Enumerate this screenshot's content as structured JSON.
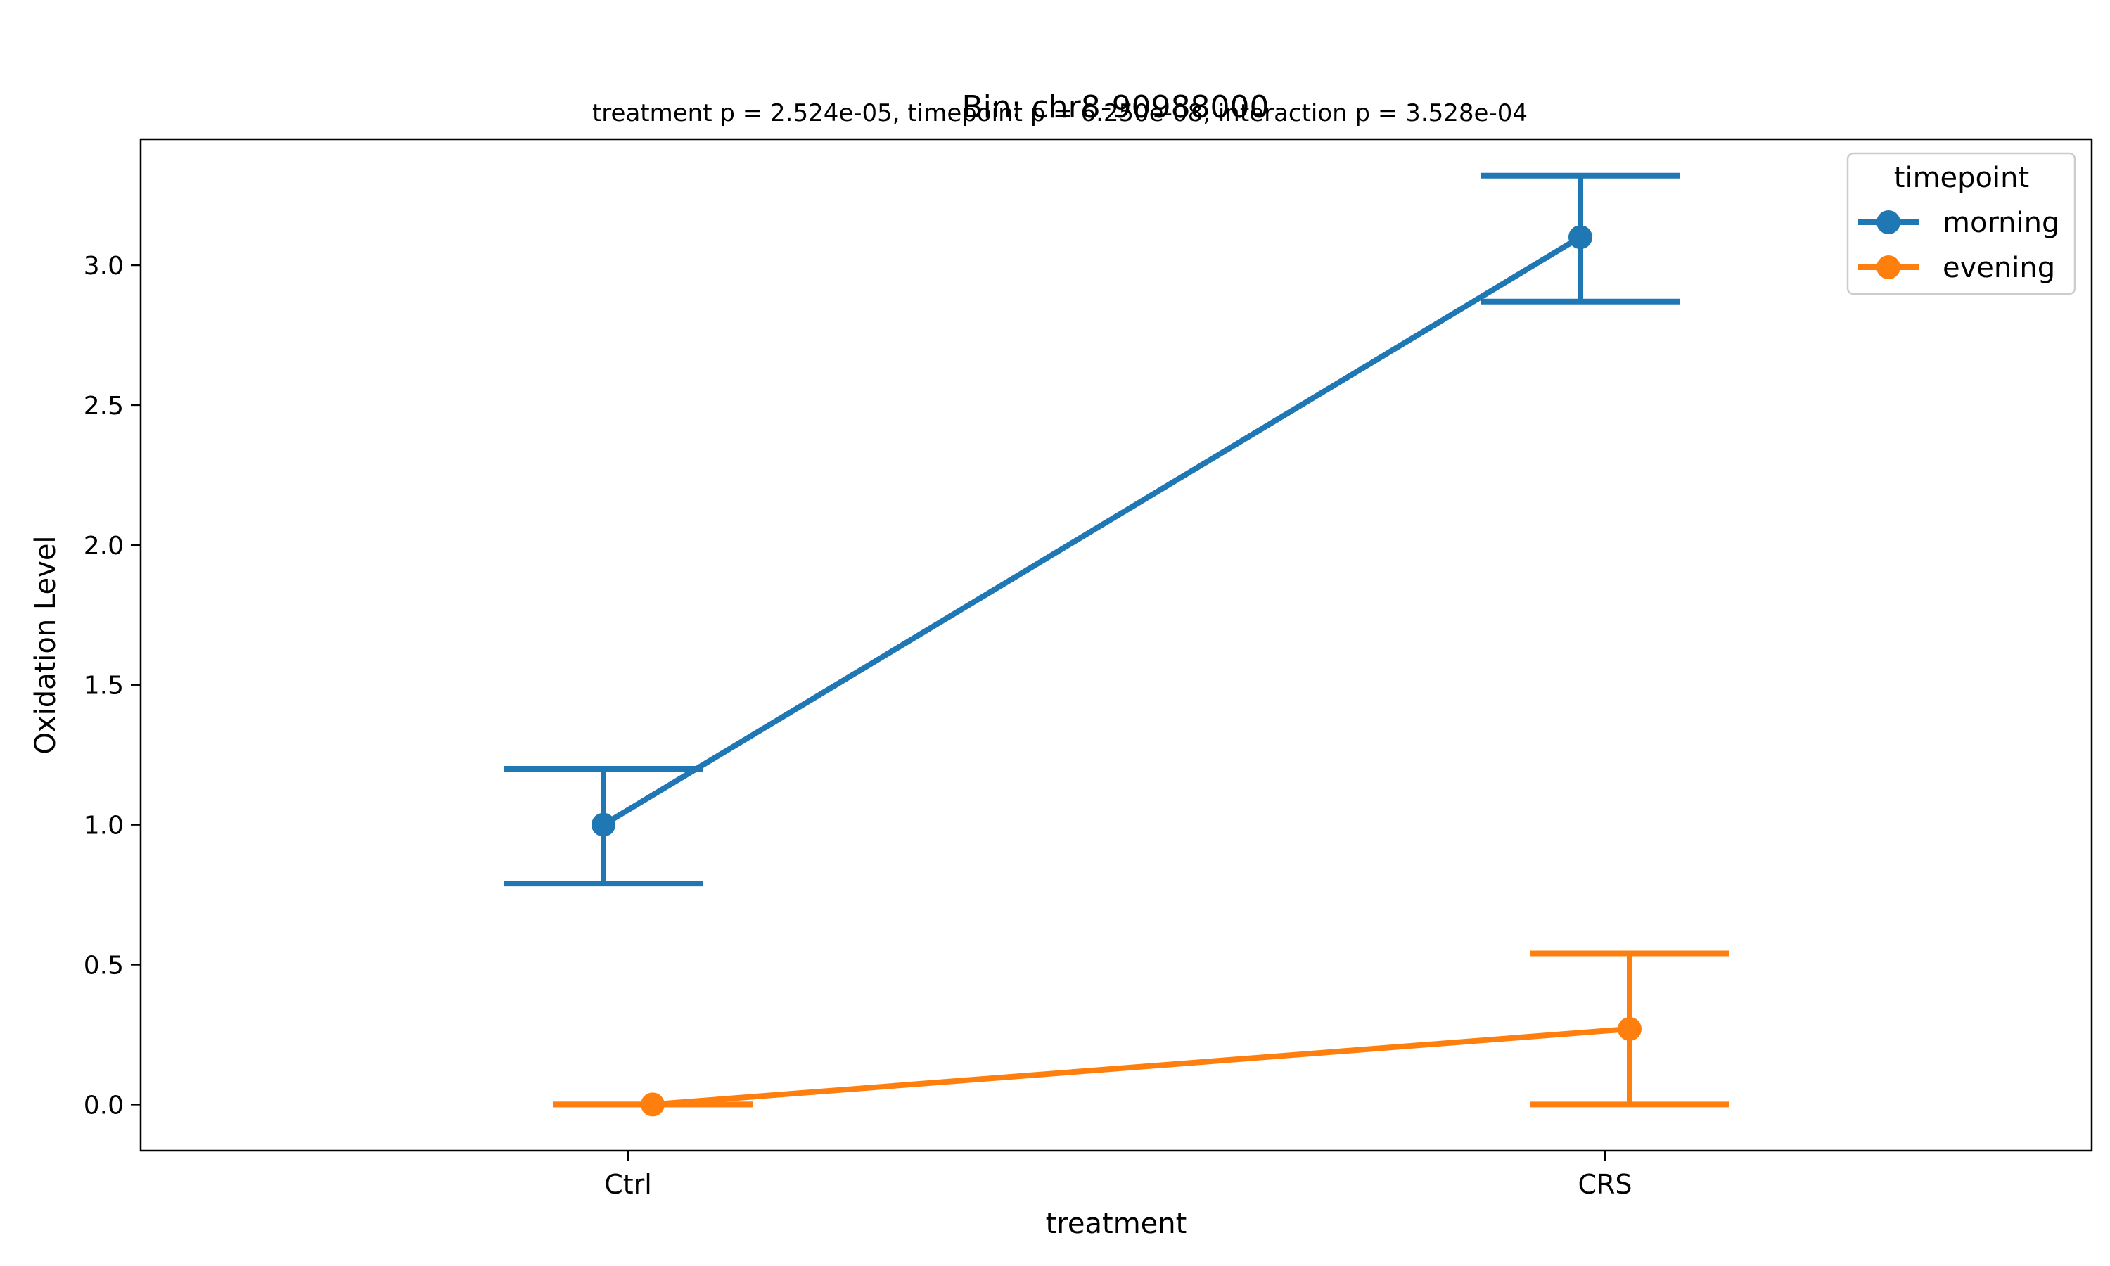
{
  "chart_data": {
    "type": "line",
    "title": "Bin: chr8-90988000",
    "subtitle": "treatment p = 2.524e-05, timepoint p = 6.250e-08, interaction p = 3.528e-04",
    "xlabel": "treatment",
    "ylabel": "Oxidation Level",
    "categories": [
      "Ctrl",
      "CRS"
    ],
    "ylim": [
      -0.165,
      3.45
    ],
    "yticks": [
      "0.0",
      "0.5",
      "1.0",
      "1.5",
      "2.0",
      "2.5",
      "3.0"
    ],
    "grid": false,
    "legend": {
      "title": "timepoint",
      "position": "top-right"
    },
    "series": [
      {
        "name": "morning",
        "color": "#1f77b4",
        "values": [
          1.0,
          3.1
        ],
        "err_low": [
          0.79,
          2.87
        ],
        "err_high": [
          1.2,
          3.32
        ]
      },
      {
        "name": "evening",
        "color": "#ff7f0e",
        "values": [
          0.0,
          0.27
        ],
        "err_low": [
          0.0,
          0.0
        ],
        "err_high": [
          0.0,
          0.54
        ]
      }
    ]
  }
}
